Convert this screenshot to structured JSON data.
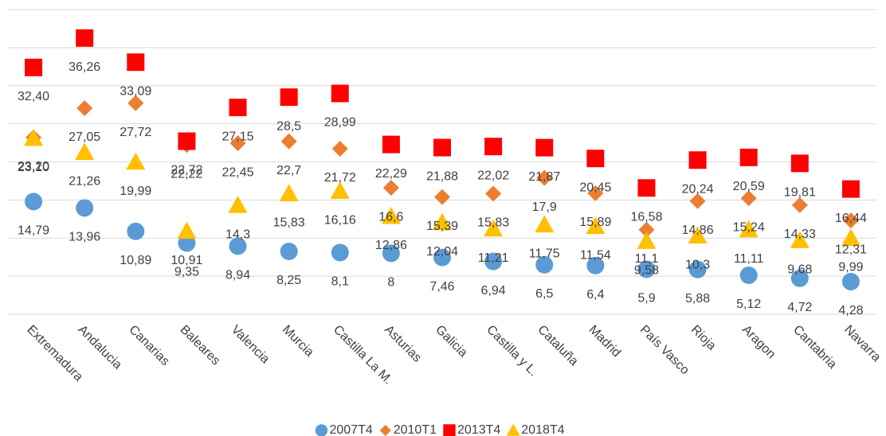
{
  "chart_data": {
    "type": "scatter",
    "categories": [
      "Extremadura",
      "Andalucia",
      "Canarias",
      "Baleares",
      "Valencia",
      "Murcia",
      "Castilla La M.",
      "Asturias",
      "Galicia",
      "Castilla y L.",
      "Cataluña",
      "Madrid",
      "País Vasco",
      "Rioja",
      "Aragon",
      "Cantabria",
      "Navarra"
    ],
    "ylim": [
      0,
      40
    ],
    "yticks": [
      0,
      5,
      10,
      15,
      20,
      25,
      30,
      35,
      40
    ],
    "grid": true,
    "legend": "bottom",
    "series": [
      {
        "name": "2007T4",
        "color": "#5b9bd5",
        "marker": "circle",
        "values": [
          14.79,
          13.96,
          10.89,
          9.35,
          8.94,
          8.25,
          8.1,
          8,
          7.46,
          6.94,
          6.5,
          6.4,
          5.9,
          5.88,
          5.12,
          4.72,
          4.28
        ],
        "value_labels": [
          "14,79",
          "13,96",
          "10,89",
          "9,35",
          "8,94",
          "8,25",
          "8,1",
          "8",
          "7,46",
          "6,94",
          "6,5",
          "6,4",
          "5,9",
          "5,88",
          "5,12",
          "4,72",
          "4,28"
        ]
      },
      {
        "name": "2010T1",
        "color": "#ed7d31",
        "marker": "diamond",
        "values": [
          23.2,
          27.05,
          27.72,
          22.22,
          22.45,
          22.7,
          21.72,
          16.6,
          15.39,
          15.83,
          17.9,
          15.89,
          11.1,
          14.86,
          15.24,
          14.33,
          12.31
        ],
        "value_labels": [
          "23,20",
          "27,05",
          "27,72",
          "22,22",
          "22,45",
          "22,7",
          "21,72",
          "16,6",
          "15,39",
          "15,83",
          "17,9",
          "15,89",
          "11,1",
          "14,86",
          "15,24",
          "14,33",
          "12,31"
        ]
      },
      {
        "name": "2013T4",
        "color": "#ff0000",
        "marker": "square",
        "values": [
          32.4,
          36.26,
          33.09,
          22.72,
          27.15,
          28.5,
          28.99,
          22.29,
          21.88,
          22.02,
          21.87,
          20.45,
          16.58,
          20.24,
          20.59,
          19.81,
          16.44
        ],
        "value_labels": [
          "32,40",
          "36,26",
          "33,09",
          "22,72",
          "27,15",
          "28,5",
          "28,99",
          "22,29",
          "21,88",
          "22,02",
          "21,87",
          "20,45",
          "16,58",
          "20,24",
          "20,59",
          "19,81",
          "16,44"
        ]
      },
      {
        "name": "2018T4",
        "color": "#ffc000",
        "marker": "triangle",
        "values": [
          23.1,
          21.26,
          19.99,
          10.91,
          14.3,
          15.83,
          16.16,
          12.86,
          12.04,
          11.21,
          11.75,
          11.54,
          9.58,
          10.3,
          11.11,
          9.68,
          9.99
        ],
        "value_labels": [
          "23,10",
          "21,26",
          "19,99",
          "10,91",
          "14,3",
          "15,83",
          "16,16",
          "12,86",
          "12,04",
          "11,21",
          "11,75",
          "11,54",
          "9,58",
          "10,3",
          "11,11",
          "9,68",
          "9,99"
        ]
      }
    ]
  }
}
